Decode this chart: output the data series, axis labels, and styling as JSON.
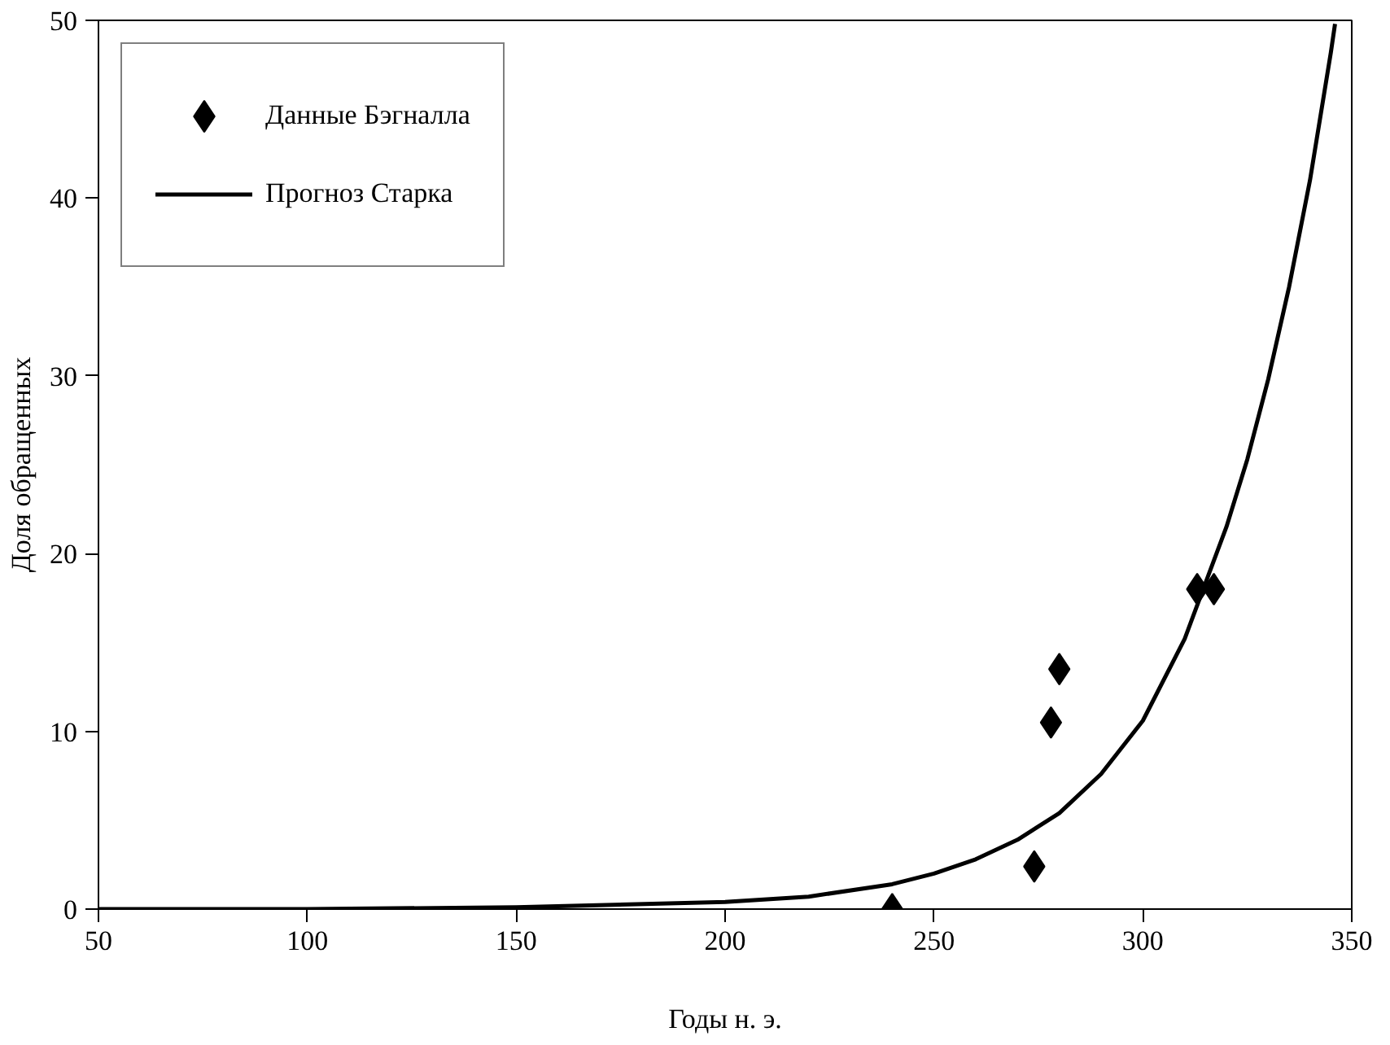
{
  "chart_data": {
    "type": "scatter",
    "xlabel": "Годы н. э.",
    "ylabel": "Доля обращенных",
    "xlim": [
      50,
      350
    ],
    "xticks": [
      50,
      100,
      150,
      200,
      250,
      300,
      350
    ],
    "ylim": [
      0,
      50
    ],
    "yticks": [
      0,
      10,
      20,
      30,
      40,
      50
    ],
    "grid": false,
    "legend": "top left",
    "series": [
      {
        "name": "Данные Бэгналла",
        "marker": "diamond",
        "color": "#000000",
        "x": [
          240,
          274,
          278,
          280,
          313,
          317
        ],
        "values": [
          0,
          2.4,
          10.5,
          13.5,
          18,
          18
        ]
      },
      {
        "name": "Прогноз Старка",
        "type": "line",
        "marker": "none",
        "line_style": "solid",
        "color": "#000000",
        "x": [
          50,
          100,
          150,
          200,
          220,
          240,
          250,
          260,
          270,
          280,
          290,
          300,
          310,
          320,
          325,
          330,
          335,
          340,
          345,
          346
        ],
        "values": [
          0,
          0,
          0.1,
          0.4,
          0.7,
          1.4,
          2,
          2.8,
          3.9,
          5.4,
          7.6,
          10.6,
          15.2,
          21.5,
          25.3,
          29.8,
          35,
          41,
          48.2,
          49.8
        ]
      }
    ]
  }
}
